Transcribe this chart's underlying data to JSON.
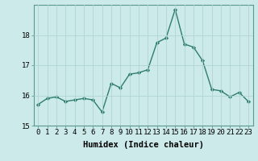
{
  "x": [
    0,
    1,
    2,
    3,
    4,
    5,
    6,
    7,
    8,
    9,
    10,
    11,
    12,
    13,
    14,
    15,
    16,
    17,
    18,
    19,
    20,
    21,
    22,
    23
  ],
  "y": [
    15.7,
    15.9,
    15.95,
    15.8,
    15.85,
    15.9,
    15.85,
    15.45,
    16.4,
    16.25,
    16.7,
    16.75,
    16.85,
    17.75,
    17.9,
    18.85,
    17.7,
    17.6,
    17.15,
    16.2,
    16.15,
    15.95,
    16.1,
    15.8
  ],
  "line_color": "#2e7d6e",
  "marker": "D",
  "marker_size": 2.2,
  "bg_color": "#cceaea",
  "grid_color": "#b0d4d4",
  "border_color": "#5a9a8a",
  "xlabel": "Humidex (Indice chaleur)",
  "ylim": [
    15,
    19
  ],
  "xlim": [
    -0.5,
    23.5
  ],
  "yticks": [
    15,
    16,
    17,
    18
  ],
  "xticks": [
    0,
    1,
    2,
    3,
    4,
    5,
    6,
    7,
    8,
    9,
    10,
    11,
    12,
    13,
    14,
    15,
    16,
    17,
    18,
    19,
    20,
    21,
    22,
    23
  ],
  "xlabel_fontsize": 7.5,
  "tick_fontsize": 6.5,
  "line_width": 1.0
}
